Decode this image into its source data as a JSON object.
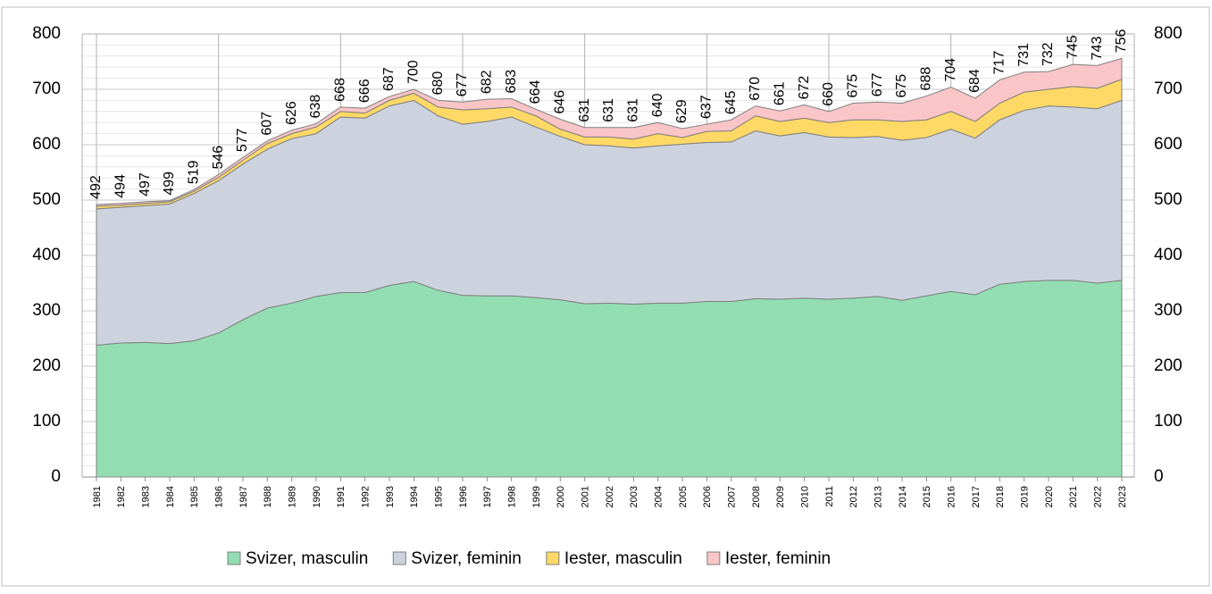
{
  "chart_data": {
    "type": "stacked-area",
    "categories": [
      "1981",
      "1982",
      "1983",
      "1984",
      "1985",
      "1986",
      "1987",
      "1988",
      "1989",
      "1990",
      "1991",
      "1992",
      "1993",
      "1994",
      "1995",
      "1996",
      "1997",
      "1998",
      "1999",
      "2000",
      "2001",
      "2002",
      "2003",
      "2004",
      "2005",
      "2006",
      "2007",
      "2008",
      "2009",
      "2010",
      "2011",
      "2012",
      "2013",
      "2014",
      "2015",
      "2016",
      "2017",
      "2018",
      "2019",
      "2020",
      "2021",
      "2022",
      "2023"
    ],
    "series": [
      {
        "name": "Svizer, masculin",
        "color": "#92deb2",
        "values": [
          238,
          242,
          243,
          241,
          246,
          260,
          284,
          305,
          314,
          326,
          333,
          333,
          346,
          353,
          337,
          328,
          327,
          327,
          324,
          320,
          313,
          314,
          312,
          314,
          314,
          317,
          317,
          322,
          321,
          323,
          321,
          323,
          326,
          319,
          327,
          335,
          329,
          348,
          353,
          355,
          355,
          350,
          355
        ]
      },
      {
        "name": "Svizer, feminin",
        "color": "#cdd3de",
        "values": [
          246,
          245,
          247,
          252,
          266,
          275,
          281,
          287,
          297,
          294,
          317,
          315,
          324,
          327,
          315,
          309,
          315,
          323,
          308,
          295,
          287,
          284,
          282,
          284,
          287,
          287,
          288,
          303,
          295,
          299,
          293,
          290,
          289,
          289,
          286,
          293,
          283,
          297,
          309,
          315,
          313,
          315,
          325
        ]
      },
      {
        "name": "Iester, masculin",
        "color": "#ffd966",
        "values": [
          5,
          4,
          4,
          4,
          4,
          6,
          7,
          10,
          9,
          12,
          10,
          9,
          10,
          13,
          16,
          26,
          23,
          18,
          20,
          13,
          14,
          16,
          16,
          22,
          12,
          20,
          20,
          27,
          26,
          26,
          26,
          32,
          30,
          34,
          32,
          32,
          30,
          30,
          33,
          30,
          37,
          37,
          38
        ]
      },
      {
        "name": "Iester, feminin",
        "color": "#f9c5c7",
        "values": [
          3,
          3,
          3,
          2,
          3,
          5,
          5,
          5,
          6,
          6,
          8,
          9,
          7,
          7,
          12,
          14,
          17,
          15,
          12,
          18,
          17,
          17,
          21,
          20,
          16,
          13,
          20,
          18,
          19,
          24,
          20,
          30,
          32,
          33,
          43,
          44,
          42,
          42,
          36,
          32,
          40,
          41,
          38
        ]
      }
    ],
    "totals": [
      492,
      494,
      497,
      499,
      519,
      546,
      577,
      607,
      626,
      638,
      668,
      666,
      687,
      700,
      680,
      677,
      682,
      683,
      664,
      646,
      631,
      631,
      631,
      640,
      629,
      637,
      645,
      670,
      661,
      672,
      660,
      675,
      677,
      675,
      688,
      704,
      684,
      717,
      731,
      732,
      745,
      743,
      756
    ],
    "ylim": [
      0,
      800
    ],
    "yticks": [
      0,
      100,
      200,
      300,
      400,
      500,
      600,
      700,
      800
    ],
    "y2lim": [
      0,
      800
    ],
    "y2ticks": [
      0,
      100,
      200,
      300,
      400,
      500,
      600,
      700,
      800
    ],
    "grid": true,
    "legend": "bottom"
  }
}
